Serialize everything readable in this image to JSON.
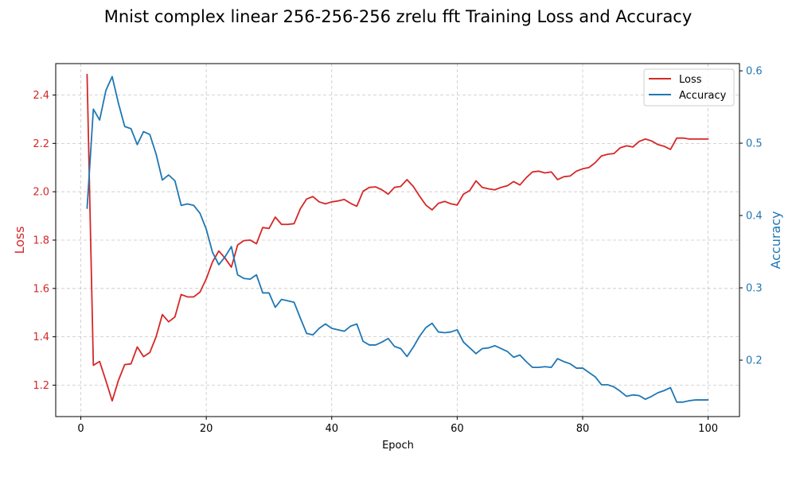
{
  "chart_data": {
    "type": "line",
    "title": "Mnist complex linear 256-256-256 zrelu fft Training Loss and Accuracy",
    "xlabel": "Epoch",
    "ylabel_left": "Loss",
    "ylabel_right": "Accuracy",
    "xlim": [
      -4,
      105
    ],
    "ylim_left": [
      1.07,
      2.53
    ],
    "ylim_right": [
      0.122,
      0.61
    ],
    "x_ticks": [
      0,
      20,
      40,
      60,
      80,
      100
    ],
    "y_ticks_left": [
      1.2,
      1.4,
      1.6,
      1.8,
      2.0,
      2.2,
      2.4
    ],
    "y_ticks_right": [
      0.2,
      0.3,
      0.4,
      0.5,
      0.6
    ],
    "x_tick_labels": [
      "0",
      "20",
      "40",
      "60",
      "80",
      "100"
    ],
    "y_tick_labels_left": [
      "1.2",
      "1.4",
      "1.6",
      "1.8",
      "2.0",
      "2.2",
      "2.4"
    ],
    "y_tick_labels_right": [
      "0.2",
      "0.3",
      "0.4",
      "0.5",
      "0.6"
    ],
    "grid": true,
    "legend_position": "top-right",
    "loss_color": "#d62728",
    "accuracy_color": "#1f77b4",
    "series": [
      {
        "name": "Loss",
        "axis": "left",
        "values": [
          2.485,
          1.282,
          1.298,
          1.218,
          1.135,
          1.22,
          1.285,
          1.288,
          1.358,
          1.318,
          1.335,
          1.4,
          1.492,
          1.462,
          1.482,
          1.575,
          1.565,
          1.565,
          1.585,
          1.64,
          1.71,
          1.755,
          1.725,
          1.688,
          1.78,
          1.798,
          1.8,
          1.785,
          1.852,
          1.848,
          1.895,
          1.865,
          1.865,
          1.868,
          1.93,
          1.97,
          1.98,
          1.958,
          1.95,
          1.958,
          1.962,
          1.968,
          1.952,
          1.94,
          2.002,
          2.018,
          2.02,
          2.008,
          1.99,
          2.018,
          2.022,
          2.05,
          2.022,
          1.982,
          1.945,
          1.925,
          1.952,
          1.96,
          1.95,
          1.945,
          1.99,
          2.005,
          2.045,
          2.018,
          2.012,
          2.008,
          2.018,
          2.025,
          2.042,
          2.028,
          2.058,
          2.082,
          2.085,
          2.078,
          2.082,
          2.05,
          2.062,
          2.065,
          2.085,
          2.095,
          2.1,
          2.12,
          2.148,
          2.155,
          2.158,
          2.182,
          2.19,
          2.185,
          2.208,
          2.218,
          2.21,
          2.195,
          2.188,
          2.175,
          2.222,
          2.222,
          2.218,
          2.218,
          2.218,
          2.218
        ]
      },
      {
        "name": "Accuracy",
        "axis": "right",
        "values": [
          0.41,
          0.547,
          0.532,
          0.573,
          0.592,
          0.555,
          0.523,
          0.52,
          0.498,
          0.516,
          0.512,
          0.485,
          0.449,
          0.456,
          0.448,
          0.414,
          0.416,
          0.414,
          0.403,
          0.381,
          0.349,
          0.332,
          0.343,
          0.357,
          0.318,
          0.313,
          0.312,
          0.318,
          0.293,
          0.293,
          0.273,
          0.284,
          0.282,
          0.28,
          0.258,
          0.237,
          0.235,
          0.244,
          0.25,
          0.244,
          0.242,
          0.24,
          0.247,
          0.25,
          0.226,
          0.221,
          0.221,
          0.225,
          0.23,
          0.219,
          0.216,
          0.205,
          0.218,
          0.233,
          0.245,
          0.251,
          0.239,
          0.238,
          0.239,
          0.242,
          0.225,
          0.217,
          0.209,
          0.216,
          0.217,
          0.22,
          0.216,
          0.212,
          0.204,
          0.207,
          0.198,
          0.19,
          0.19,
          0.191,
          0.19,
          0.202,
          0.198,
          0.195,
          0.189,
          0.189,
          0.183,
          0.177,
          0.166,
          0.166,
          0.163,
          0.157,
          0.15,
          0.152,
          0.151,
          0.146,
          0.15,
          0.155,
          0.158,
          0.162,
          0.142,
          0.142,
          0.144,
          0.145,
          0.145,
          0.145
        ]
      }
    ]
  }
}
